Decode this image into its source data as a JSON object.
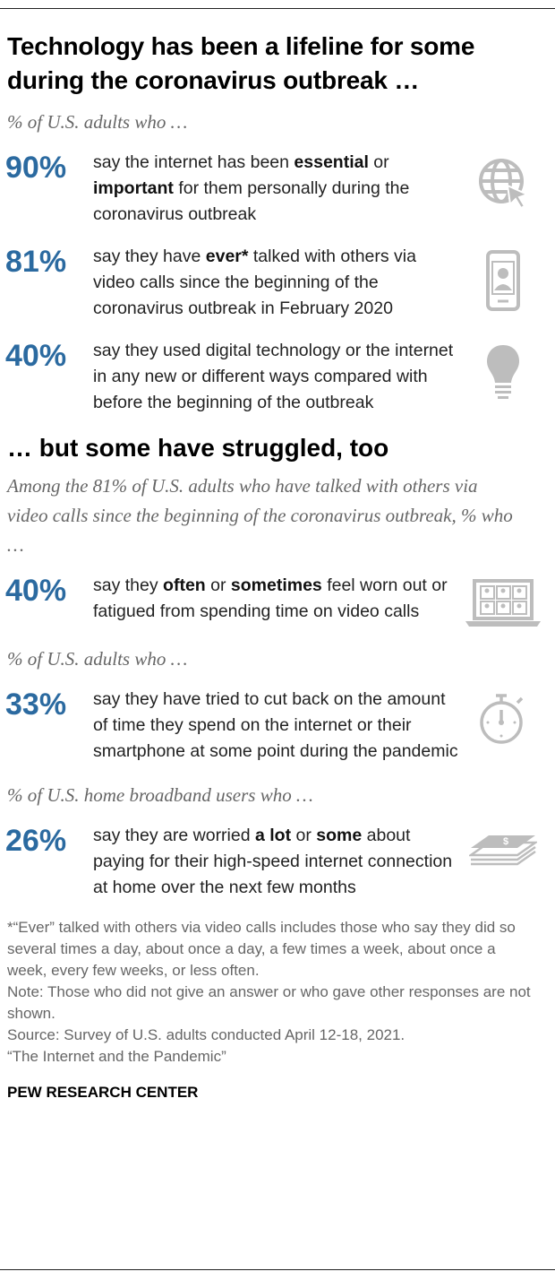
{
  "header": {
    "title": "Technology has been a lifeline for some during the coronavirus outbreak …"
  },
  "blocks": [
    {
      "intro": "% of U.S. adults who …",
      "items": [
        {
          "stat": "90%",
          "text": [
            {
              "t": "say the internet has been "
            },
            {
              "t": "essential",
              "bold": true
            },
            {
              "t": " or "
            },
            {
              "t": "important",
              "bold": true
            },
            {
              "t": " for them personally during the coronavirus outbreak"
            }
          ]
        },
        {
          "stat": "81%",
          "text": [
            {
              "t": "say they have "
            },
            {
              "t": "ever*",
              "bold": true
            },
            {
              "t": " talked with others via video calls since the beginning of the coronavirus outbreak in February 2020"
            }
          ]
        },
        {
          "stat": "40%",
          "text": [
            {
              "t": "say they used digital technology or the internet in any new or different ways compared with before the beginning of the outbreak"
            }
          ]
        }
      ]
    },
    {
      "heading": "… but some have struggled, too"
    },
    {
      "intro": "Among the 81% of U.S. adults who have talked with others via video calls since the beginning of the coronavirus outbreak, % who …",
      "items": [
        {
          "stat": "40%",
          "text": [
            {
              "t": "say they "
            },
            {
              "t": "often",
              "bold": true
            },
            {
              "t": " or "
            },
            {
              "t": "sometimes",
              "bold": true
            },
            {
              "t": " feel worn out or fatigued from spending time on video calls"
            }
          ]
        }
      ]
    },
    {
      "intro": "% of U.S. adults who …",
      "items": [
        {
          "stat": "33%",
          "text": [
            {
              "t": "say they have tried to cut back on the amount of time they spend on the internet or their smartphone at some point during the pandemic"
            }
          ]
        }
      ]
    },
    {
      "intro": "% of U.S. home broadband users who …",
      "items": [
        {
          "stat": "26%",
          "text": [
            {
              "t": "say they are worried "
            },
            {
              "t": "a lot",
              "bold": true
            },
            {
              "t": " or "
            },
            {
              "t": "some",
              "bold": true
            },
            {
              "t": " about paying for their high-speed internet connection at home over the next few months"
            }
          ]
        }
      ]
    }
  ],
  "notes": [
    "*“Ever” talked with others via video calls includes those who say they did so several times a day, about once a day, a few times a week, about once a week, every few weeks, or less often.",
    "Note: Those who did not give an answer or who gave other responses are not shown.",
    "Source: Survey of U.S. adults conducted April 12-18, 2021.",
    "“The Internet and the Pandemic”"
  ],
  "footer": {
    "brand": "PEW RESEARCH CENTER"
  }
}
